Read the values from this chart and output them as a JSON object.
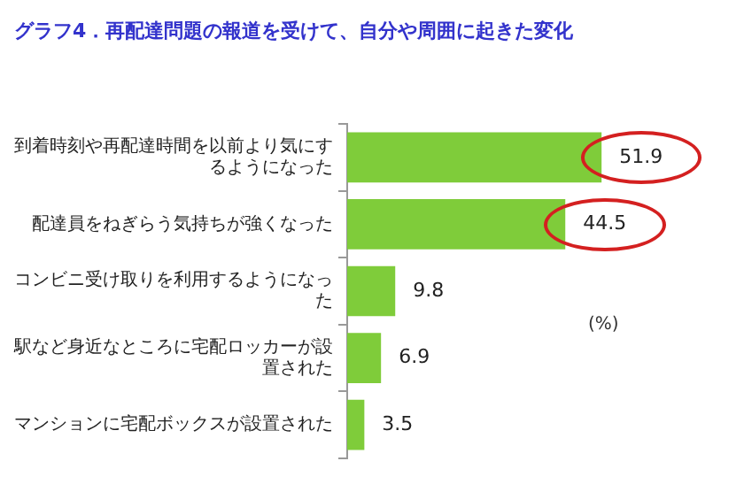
{
  "chart_data": {
    "type": "bar",
    "orientation": "horizontal",
    "title": "グラフ4．再配達問題の報道を受けて、自分や周囲に起きた変化",
    "categories": [
      "到着時刻や再配達時間を以前より気にするようになった",
      "配達員をねぎらう気持ちが強くなった",
      "コンビニ受け取りを利用するようになった",
      "駅など身近なところに宅配ロッカーが設置された",
      "マンションに宅配ボックスが設置された"
    ],
    "values": [
      51.9,
      44.5,
      9.8,
      6.9,
      3.5
    ],
    "color": "#7fcc3a",
    "data_labels": true,
    "grid": false,
    "legend": false,
    "annotations": [
      "(%)"
    ]
  }
}
